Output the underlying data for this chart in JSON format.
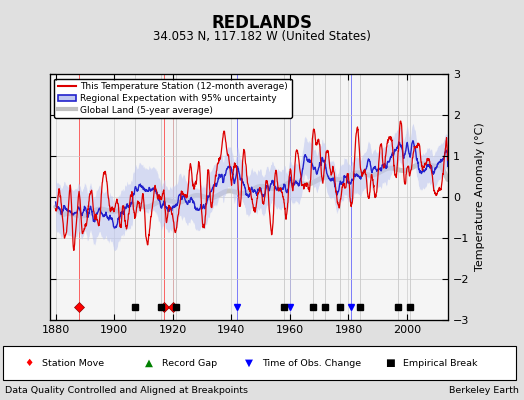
{
  "title": "REDLANDS",
  "subtitle": "34.053 N, 117.182 W (United States)",
  "xlabel_note": "Data Quality Controlled and Aligned at Breakpoints",
  "xlabel_right": "Berkeley Earth",
  "ylabel": "Temperature Anomaly (°C)",
  "ylim": [
    -3,
    3
  ],
  "xlim": [
    1878,
    2014
  ],
  "xticks": [
    1880,
    1900,
    1920,
    1940,
    1960,
    1980,
    2000
  ],
  "yticks": [
    -3,
    -2,
    -1,
    0,
    1,
    2,
    3
  ],
  "bg_color": "#e0e0e0",
  "plot_bg_color": "#f5f5f5",
  "station_color": "#dd0000",
  "regional_color": "#2222cc",
  "regional_fill_color": "#c0c8f0",
  "global_color": "#c0c0c0",
  "legend_station": "This Temperature Station (12-month average)",
  "legend_regional": "Regional Expectation with 95% uncertainty",
  "legend_global": "Global Land (5-year average)",
  "marker_events": {
    "station_move": [
      1888,
      1917,
      1920
    ],
    "record_gap": [],
    "time_obs_change": [
      1942,
      1960,
      1981
    ],
    "empirical_break": [
      1907,
      1916,
      1921,
      1958,
      1968,
      1972,
      1977,
      1984,
      1997,
      2001
    ]
  },
  "vline_years": [
    1888,
    1907,
    1916,
    1917,
    1920,
    1921,
    1942,
    1958,
    1960,
    1968,
    1972,
    1977,
    1981,
    1984,
    1997,
    2001
  ]
}
